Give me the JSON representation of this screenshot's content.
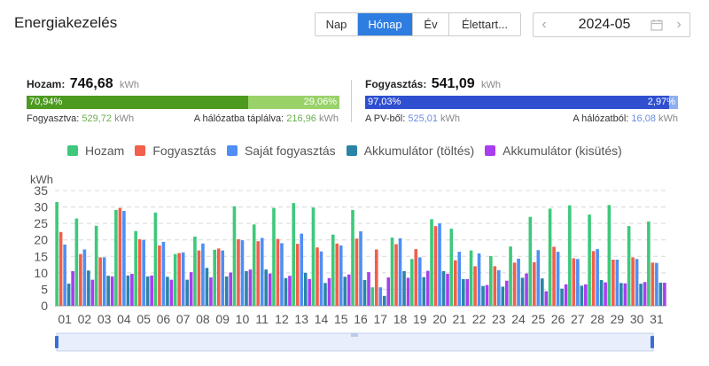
{
  "title": "Energiakezelés",
  "tabs": [
    {
      "label": "Nap",
      "active": false
    },
    {
      "label": "Hónap",
      "active": true
    },
    {
      "label": "Év",
      "active": false
    },
    {
      "label": "Élettart...",
      "active": false
    }
  ],
  "date": {
    "value": "2024-05",
    "prev": "‹",
    "next": "›"
  },
  "yield": {
    "label": "Hozam:",
    "value": "746,68",
    "unit": "kWh",
    "self_pct": "70,94%",
    "grid_pct": "29,06%",
    "self_fraction": 0.7094,
    "consumed_label": "Fogyasztva:",
    "consumed_value": "529,72",
    "consumed_unit": "kWh",
    "fed_label": "A hálózatba táplálva:",
    "fed_value": "216,96",
    "fed_unit": "kWh",
    "color_main": "#4c9a1f",
    "color_rest": "#9ad26a"
  },
  "consumption": {
    "label": "Fogyasztás:",
    "value": "541,09",
    "unit": "kWh",
    "pv_pct": "97,03%",
    "grid_pct": "2,97%",
    "pv_fraction": 0.9703,
    "pv_label": "A PV-ből:",
    "pv_value": "525,01",
    "pv_unit": "kWh",
    "grid_label": "A hálózatból:",
    "grid_value": "16,08",
    "grid_unit": "kWh",
    "color_main": "#2f4fd0",
    "color_rest": "#8fb0f0"
  },
  "chart_data": {
    "type": "bar",
    "ylabel": "kWh",
    "ylim": [
      0,
      35
    ],
    "yticks": [
      0,
      5,
      10,
      15,
      20,
      25,
      30,
      35
    ],
    "grid": true,
    "legend_position": "top",
    "categories": [
      "01",
      "02",
      "03",
      "04",
      "05",
      "06",
      "07",
      "08",
      "09",
      "10",
      "11",
      "12",
      "13",
      "14",
      "15",
      "16",
      "17",
      "18",
      "19",
      "20",
      "21",
      "22",
      "23",
      "24",
      "25",
      "26",
      "27",
      "28",
      "29",
      "30",
      "31"
    ],
    "series": [
      {
        "name": "Hozam",
        "color": "#3ec97a",
        "values": [
          31.5,
          26.5,
          24.3,
          29.1,
          22.7,
          28.3,
          15.7,
          21,
          17,
          30.2,
          24.7,
          29.7,
          31.2,
          29.8,
          21.6,
          29.1,
          5.6,
          20.7,
          14.2,
          26.3,
          23.4,
          16.8,
          15.1,
          18,
          27,
          29.5,
          30.5,
          27.7,
          30.6,
          24.2,
          25.6
        ]
      },
      {
        "name": "Fogyasztás",
        "color": "#f0604a",
        "values": [
          22.4,
          15.7,
          14.7,
          29.7,
          20.2,
          18.3,
          16,
          16.8,
          17.4,
          20.2,
          19.6,
          20.3,
          18.8,
          17.7,
          18.9,
          20.4,
          17.1,
          18.7,
          17.2,
          24.2,
          13.8,
          12,
          12,
          13.1,
          13.2,
          17.9,
          14.4,
          16.6,
          14,
          14.7,
          13.1
        ]
      },
      {
        "name": "Saját fogyasztás",
        "color": "#4f8ef5",
        "values": [
          18.6,
          17.1,
          14.7,
          28.8,
          20,
          19.4,
          16.2,
          18.9,
          16.8,
          19.9,
          20.6,
          19,
          21.9,
          16.5,
          18.3,
          22.6,
          5.6,
          20.5,
          14.7,
          25,
          16.4,
          15.9,
          10.8,
          14.3,
          16.9,
          16.4,
          14.2,
          17.2,
          14,
          14.2,
          13
        ]
      },
      {
        "name": "Akkumulátor (töltés)",
        "color": "#2a84a8",
        "values": [
          6.7,
          10.7,
          9.1,
          9.2,
          8.9,
          8.8,
          7.9,
          11.5,
          8.9,
          10.5,
          11,
          8.4,
          10,
          6.9,
          8.8,
          7.8,
          3,
          10.5,
          8.7,
          10.5,
          8.1,
          6,
          5.8,
          8.5,
          8.3,
          5.2,
          6.1,
          7.8,
          6.9,
          6.7,
          7
        ]
      },
      {
        "name": "Akkumulátor (kisütés)",
        "color": "#a83ef0",
        "values": [
          10.5,
          7.9,
          8.9,
          9.7,
          9.2,
          7.9,
          10.2,
          8.6,
          10.1,
          11,
          9.8,
          9.1,
          8.1,
          8.4,
          9.5,
          10.2,
          8.6,
          8.5,
          10.6,
          9.7,
          8.1,
          6.3,
          7.6,
          9.8,
          4.4,
          6.5,
          6.5,
          7.1,
          6.8,
          7.2,
          7
        ]
      }
    ]
  }
}
